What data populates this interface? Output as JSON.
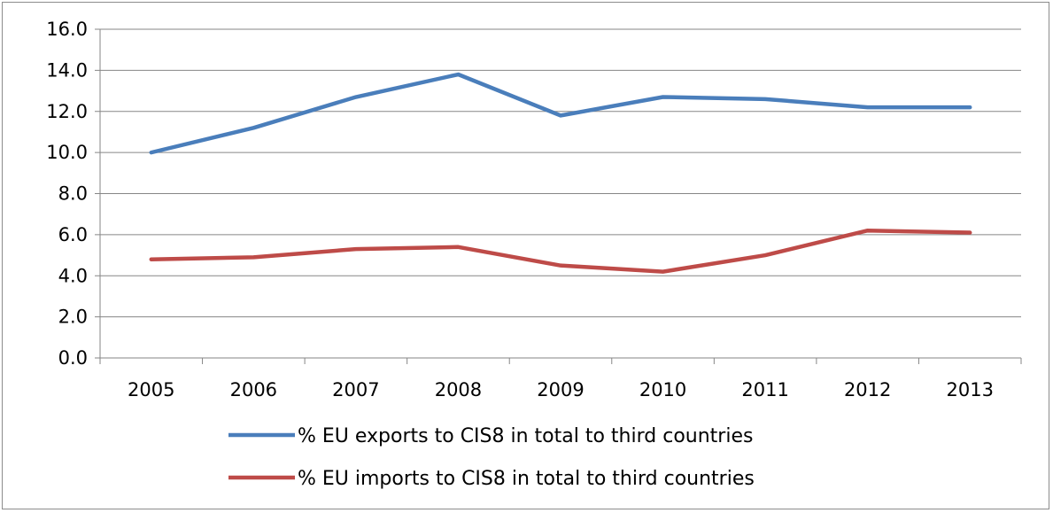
{
  "chart_data": {
    "type": "line",
    "categories": [
      "2005",
      "2006",
      "2007",
      "2008",
      "2009",
      "2010",
      "2011",
      "2012",
      "2013"
    ],
    "ylim": [
      0,
      16
    ],
    "y_ticks": [
      "0.0",
      "2.0",
      "4.0",
      "6.0",
      "8.0",
      "10.0",
      "12.0",
      "14.0",
      "16.0"
    ],
    "grid": true,
    "legend_position": "bottom",
    "series": [
      {
        "name": "% EU exports to CIS8 in total to third countries",
        "color": "#4a7ebb",
        "values": [
          10.0,
          11.2,
          12.7,
          13.8,
          11.8,
          12.7,
          12.6,
          12.2,
          12.2
        ]
      },
      {
        "name": "% EU imports to CIS8 in total to third countries",
        "color": "#be4b48",
        "values": [
          4.8,
          4.9,
          5.3,
          5.4,
          4.5,
          4.2,
          5.0,
          6.2,
          6.1
        ]
      }
    ]
  }
}
